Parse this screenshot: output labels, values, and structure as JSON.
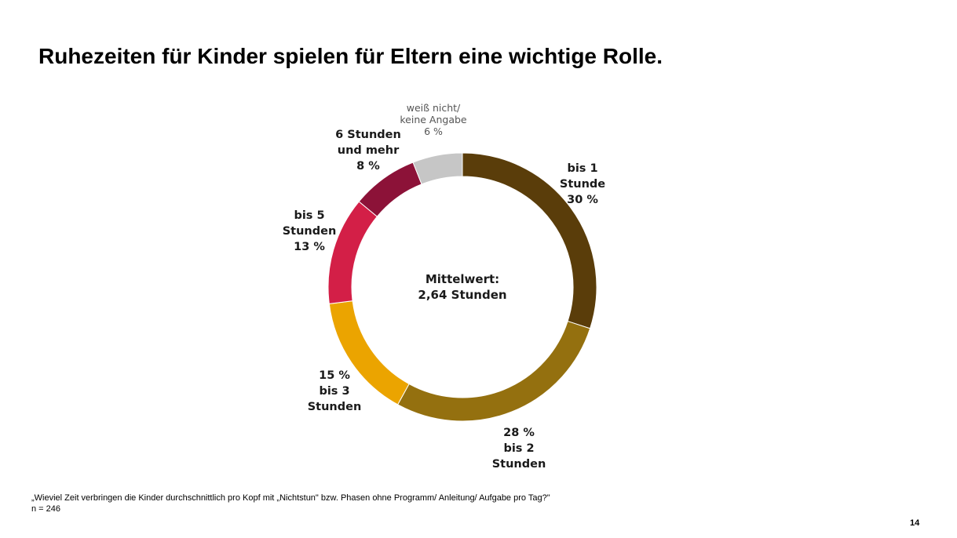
{
  "title": "Ruhezeiten für Kinder spielen für Eltern eine wichtige Rolle.",
  "chart_data": {
    "type": "pie",
    "variant": "donut",
    "center_label": [
      "Mittelwert:",
      "2,64 Stunden"
    ],
    "slices": [
      {
        "label": [
          "bis 1",
          "Stunde"
        ],
        "value": 30,
        "value_label": "30 %",
        "color": "#5a3d0a"
      },
      {
        "label": [
          "bis 2",
          "Stunden"
        ],
        "value": 28,
        "value_label": "28 %",
        "color": "#94700f"
      },
      {
        "label": [
          "bis 3",
          "Stunden"
        ],
        "value": 15,
        "value_label": "15 %",
        "color": "#eba400"
      },
      {
        "label": [
          "bis 5",
          "Stunden"
        ],
        "value": 13,
        "value_label": "13 %",
        "color": "#d31f47"
      },
      {
        "label": [
          "6 Stunden",
          "und mehr"
        ],
        "value": 8,
        "value_label": "8 %",
        "color": "#8c1238"
      },
      {
        "label": [
          "weiß nicht/",
          "keine Angabe"
        ],
        "value": 6,
        "value_label": "6 %",
        "color": "#c6c6c6"
      }
    ]
  },
  "footer": {
    "question": "„Wieviel Zeit verbringen die Kinder durchschnittlich pro Kopf mit „Nichtstun\" bzw. Phasen ohne Programm/ Anleitung/ Aufgabe pro Tag?\"",
    "n": "n = 246"
  },
  "page_number": "14"
}
